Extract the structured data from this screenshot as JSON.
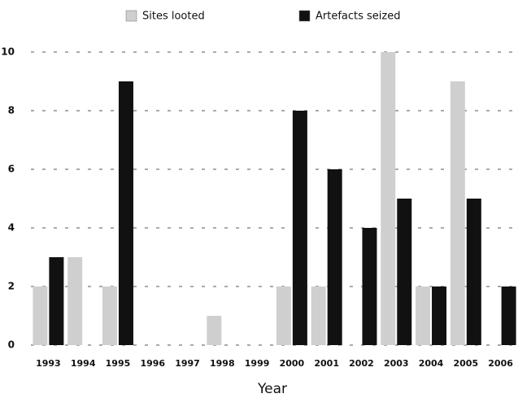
{
  "chart_data": {
    "type": "bar",
    "categories": [
      "1993",
      "1994",
      "1995",
      "1996",
      "1997",
      "1998",
      "1999",
      "2000",
      "2001",
      "2002",
      "2003",
      "2004",
      "2005",
      "2006"
    ],
    "series": [
      {
        "name": "Sites looted",
        "color": "#cfcfcf",
        "values": [
          2,
          3,
          2,
          0,
          0,
          1,
          0,
          2,
          2,
          0,
          10,
          2,
          9,
          0
        ]
      },
      {
        "name": "Artefacts seized",
        "color": "#111111",
        "values": [
          3,
          0,
          9,
          0,
          0,
          0,
          0,
          8,
          6,
          4,
          5,
          2,
          5,
          2
        ]
      }
    ],
    "x_label": "Year",
    "ylim": [
      0,
      10
    ],
    "yticks": [
      0,
      2,
      4,
      6,
      8,
      10
    ],
    "grid": true,
    "legend": "top"
  }
}
